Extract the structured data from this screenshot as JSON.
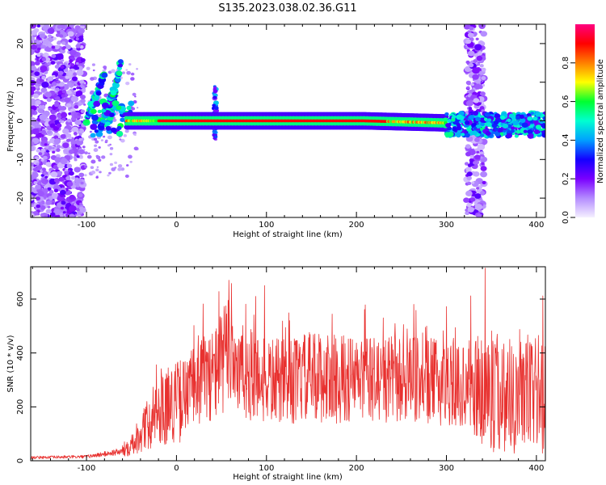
{
  "title": "S135.2023.038.02.36.G11",
  "colors": {
    "signal_line": "#e8312f",
    "colormap": [
      "#f5f0ff",
      "#b48cff",
      "#7a00ff",
      "#1400ff",
      "#00a0ff",
      "#00ffd0",
      "#00ff30",
      "#ffff00",
      "#ff7f00",
      "#ff0000",
      "#ff0080"
    ]
  },
  "chart_data": [
    {
      "type": "heatmap",
      "xlabel": "Height of straight line (km)",
      "ylabel": "Frequency (Hz)",
      "xlim": [
        -162,
        410
      ],
      "ylim": [
        -25,
        25
      ],
      "x_ticks": [
        -100,
        0,
        100,
        200,
        300,
        400
      ],
      "y_ticks": [
        -20,
        -10,
        0,
        10,
        20
      ],
      "colorbar": {
        "label": "Normalized spectral amplitude",
        "range": [
          0,
          1
        ],
        "ticks": [
          "0.0",
          "0.2",
          "0.4",
          "0.6",
          "0.8"
        ],
        "tick_values": [
          0.0,
          0.2,
          0.4,
          0.6,
          0.8
        ]
      },
      "features": {
        "main_band": {
          "freq_hz": 0,
          "x_start": -55,
          "x_end": 300,
          "peak_amplitude": 0.9
        },
        "chirps": [
          {
            "x": [
              -100,
              -80
            ],
            "freq": [
              0,
              12
            ]
          },
          {
            "x": [
              -75,
              -62
            ],
            "freq": [
              0,
              15
            ]
          },
          {
            "x": [
              -85,
              -70
            ],
            "freq": [
              -2,
              8
            ]
          }
        ],
        "broadband_noise_regions": [
          [
            -162,
            -103
          ],
          [
            322,
            342
          ]
        ],
        "spikes": [
          {
            "x": 43,
            "freq_range": [
              -5,
              9
            ]
          }
        ],
        "late_band": {
          "x_start": 300,
          "x_end": 410,
          "freq_hz": -1,
          "amplitude": 0.5
        }
      }
    },
    {
      "type": "line",
      "xlabel": "Height of straight line (km)",
      "ylabel": "SNR (10 * v/v)",
      "xlim": [
        -162,
        410
      ],
      "ylim": [
        0,
        720
      ],
      "x_ticks": [
        -100,
        0,
        100,
        200,
        300,
        400
      ],
      "y_ticks": [
        0,
        200,
        400,
        600
      ],
      "anchors": {
        "x": [
          -162,
          -100,
          -60,
          -40,
          -20,
          0,
          10,
          20,
          40,
          50,
          60,
          70,
          80,
          100,
          120,
          150,
          200,
          250,
          300,
          340,
          370,
          410
        ],
        "y": [
          12,
          15,
          35,
          100,
          190,
          220,
          230,
          290,
          320,
          360,
          420,
          330,
          320,
          300,
          290,
          310,
          300,
          300,
          290,
          260,
          250,
          250
        ]
      },
      "peaks": [
        [
          343,
          715
        ],
        [
          98,
          650
        ],
        [
          61,
          658
        ],
        [
          47,
          628
        ],
        [
          88,
          610
        ],
        [
          327,
          612
        ],
        [
          407,
          612
        ],
        [
          300,
          572
        ],
        [
          230,
          530
        ]
      ]
    }
  ]
}
